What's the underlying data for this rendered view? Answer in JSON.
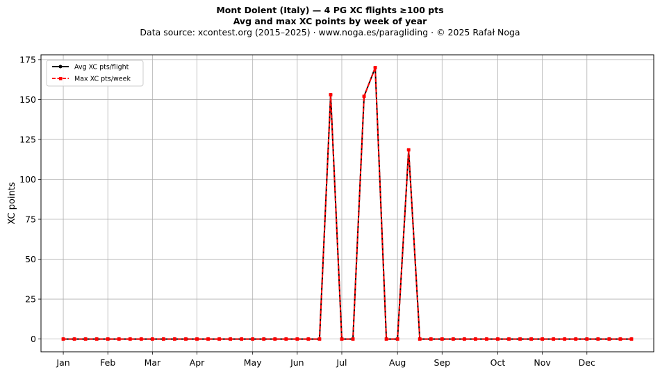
{
  "title_lines": [
    "Mont Dolent (Italy)  —  4 PG XC flights ≥100 pts",
    "Avg and max XC points by week of year",
    "Data source: xcontest.org (2015–2025)  ·  www.noga.es/paragliding  ·  © 2025 Rafał Noga"
  ],
  "chart_data": {
    "type": "line",
    "title": "Mont Dolent (Italy)  —  4 PG XC flights ≥100 pts",
    "subtitle": "Avg and max XC points by week of year",
    "xlabel": "",
    "ylabel": "XC points",
    "x_unit": "week of year",
    "xlim": [
      -1.0,
      54.0
    ],
    "ylim": [
      -8,
      178
    ],
    "x_ticks": [
      {
        "label": "Jan",
        "week": 1
      },
      {
        "label": "Feb",
        "week": 5
      },
      {
        "label": "Mar",
        "week": 9
      },
      {
        "label": "Apr",
        "week": 13
      },
      {
        "label": "May",
        "week": 18
      },
      {
        "label": "Jun",
        "week": 22
      },
      {
        "label": "Jul",
        "week": 26
      },
      {
        "label": "Aug",
        "week": 31
      },
      {
        "label": "Sep",
        "week": 35
      },
      {
        "label": "Oct",
        "week": 40
      },
      {
        "label": "Nov",
        "week": 44
      },
      {
        "label": "Dec",
        "week": 48
      }
    ],
    "y_ticks": [
      0,
      25,
      50,
      75,
      100,
      125,
      150,
      175
    ],
    "grid": true,
    "legend_position": "top-left",
    "x": [
      1,
      2,
      3,
      4,
      5,
      6,
      7,
      8,
      9,
      10,
      11,
      12,
      13,
      14,
      15,
      16,
      17,
      18,
      19,
      20,
      21,
      22,
      23,
      24,
      25,
      26,
      27,
      28,
      29,
      30,
      31,
      32,
      33,
      34,
      35,
      36,
      37,
      38,
      39,
      40,
      41,
      42,
      43,
      44,
      45,
      46,
      47,
      48,
      49,
      50,
      51,
      52
    ],
    "series": [
      {
        "name": "Avg XC pts/flight",
        "color": "#000000",
        "style": "solid-dot",
        "values": [
          0,
          0,
          0,
          0,
          0,
          0,
          0,
          0,
          0,
          0,
          0,
          0,
          0,
          0,
          0,
          0,
          0,
          0,
          0,
          0,
          0,
          0,
          0,
          0,
          153,
          0,
          0,
          152,
          170,
          0,
          0,
          118.5,
          0,
          0,
          0,
          0,
          0,
          0,
          0,
          0,
          0,
          0,
          0,
          0,
          0,
          0,
          0,
          0,
          0,
          0,
          0,
          0
        ]
      },
      {
        "name": "Max XC pts/week",
        "color": "#ff0000",
        "style": "dashed-square",
        "values": [
          0,
          0,
          0,
          0,
          0,
          0,
          0,
          0,
          0,
          0,
          0,
          0,
          0,
          0,
          0,
          0,
          0,
          0,
          0,
          0,
          0,
          0,
          0,
          0,
          153,
          0,
          0,
          152,
          170,
          0,
          0,
          118.5,
          0,
          0,
          0,
          0,
          0,
          0,
          0,
          0,
          0,
          0,
          0,
          0,
          0,
          0,
          0,
          0,
          0,
          0,
          0,
          0
        ]
      }
    ]
  }
}
